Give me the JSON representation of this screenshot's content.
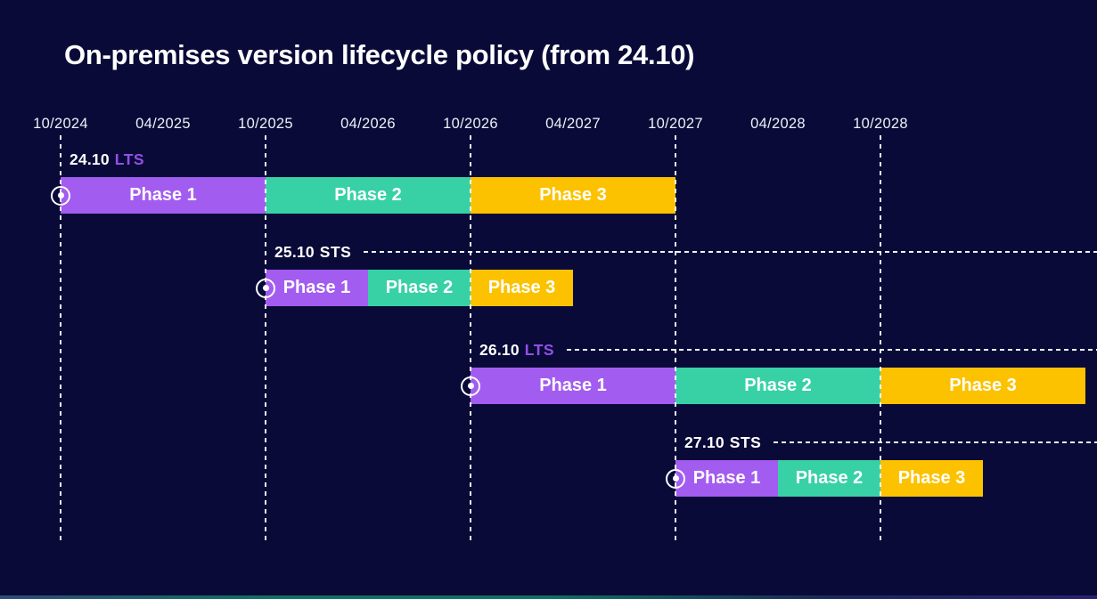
{
  "title": "On-premises version lifecycle policy (from 24.10)",
  "page": {
    "background": "#0a0a38",
    "text_color": "#ffffff",
    "axis_text_color": "#eef0f6",
    "accent_bar_gradient": [
      "#2e4a7a",
      "#11705f",
      "#11705f",
      "#1a2a5c",
      "#2b2070"
    ]
  },
  "chart_data": {
    "type": "bar",
    "variant": "gantt-timeline",
    "title": "On-premises version lifecycle policy (from 24.10)",
    "x_axis": {
      "start": "10/2024",
      "months_per_tick": 6,
      "ticks": [
        {
          "label": "10/2024",
          "gridline": true
        },
        {
          "label": "04/2025",
          "gridline": false
        },
        {
          "label": "10/2025",
          "gridline": true
        },
        {
          "label": "04/2026",
          "gridline": false
        },
        {
          "label": "10/2026",
          "gridline": true
        },
        {
          "label": "04/2027",
          "gridline": false
        },
        {
          "label": "10/2027",
          "gridline": true
        },
        {
          "label": "04/2028",
          "gridline": false
        },
        {
          "label": "10/2028",
          "gridline": true
        }
      ]
    },
    "phase_colors": {
      "Phase 1": "#a35cf0",
      "Phase 2": "#38d1a6",
      "Phase 3": "#fcc200"
    },
    "channel_colors": {
      "LTS": "#9150e6",
      "STS": "#ffffff"
    },
    "rows": [
      {
        "version": "24.10",
        "channel": "LTS",
        "release_marker": "10/2024",
        "leader_line": false,
        "phases": [
          {
            "label": "Phase 1",
            "start": "10/2024",
            "end": "10/2025"
          },
          {
            "label": "Phase 2",
            "start": "10/2025",
            "end": "10/2026"
          },
          {
            "label": "Phase 3",
            "start": "10/2026",
            "end": "10/2027"
          }
        ]
      },
      {
        "version": "25.10",
        "channel": "STS",
        "release_marker": "10/2025",
        "leader_line": true,
        "phases": [
          {
            "label": "Phase 1",
            "start": "10/2025",
            "end": "04/2026"
          },
          {
            "label": "Phase 2",
            "start": "04/2026",
            "end": "10/2026"
          },
          {
            "label": "Phase 3",
            "start": "10/2026",
            "end": "04/2027"
          }
        ]
      },
      {
        "version": "26.10",
        "channel": "LTS",
        "release_marker": "10/2026",
        "leader_line": true,
        "phases": [
          {
            "label": "Phase 1",
            "start": "10/2026",
            "end": "10/2027"
          },
          {
            "label": "Phase 2",
            "start": "10/2027",
            "end": "10/2028"
          },
          {
            "label": "Phase 3",
            "start": "10/2028",
            "end": "10/2029"
          }
        ]
      },
      {
        "version": "27.10",
        "channel": "STS",
        "release_marker": "10/2027",
        "leader_line": true,
        "phases": [
          {
            "label": "Phase 1",
            "start": "10/2027",
            "end": "04/2028"
          },
          {
            "label": "Phase 2",
            "start": "04/2028",
            "end": "10/2028"
          },
          {
            "label": "Phase 3",
            "start": "10/2028",
            "end": "04/2029"
          }
        ]
      }
    ]
  }
}
